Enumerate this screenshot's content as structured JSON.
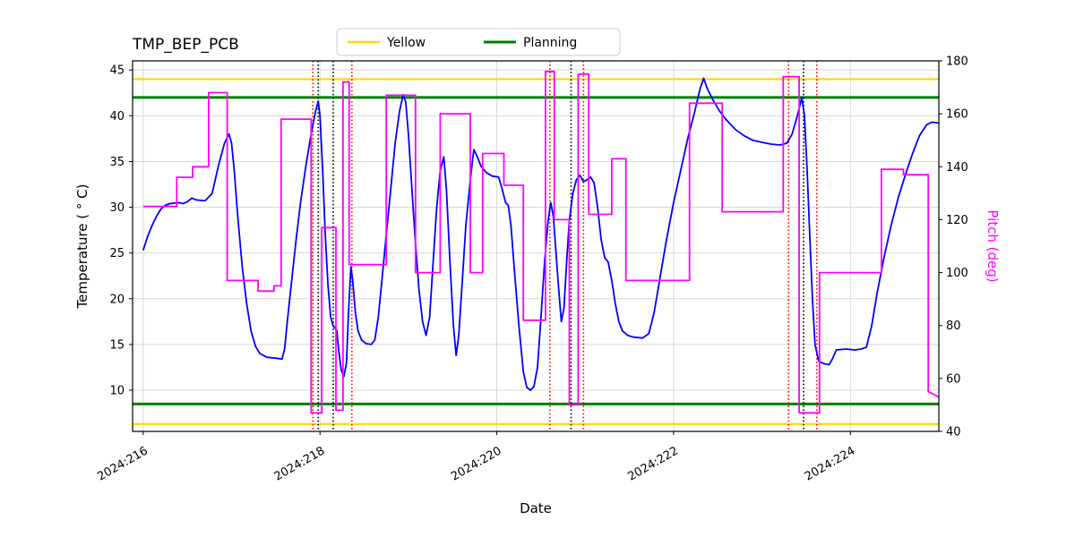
{
  "chart_data": {
    "type": "line",
    "title": "TMP_BEP_PCB",
    "xlabel": "Date",
    "ylabel_left": "Temperature ( ° C)",
    "ylabel_right": "Pitch (deg)",
    "grid": true,
    "legend_position": "top-center",
    "xlim": [
      215.88,
      225.0
    ],
    "ylim_left": [
      5.5,
      46
    ],
    "ylim_right": [
      40,
      180
    ],
    "xticks": [
      {
        "value": 216,
        "label": "2024:216"
      },
      {
        "value": 218,
        "label": "2024:218"
      },
      {
        "value": 220,
        "label": "2024:220"
      },
      {
        "value": 222,
        "label": "2024:222"
      },
      {
        "value": 224,
        "label": "2024:224"
      }
    ],
    "yticks_left": [
      10,
      15,
      20,
      25,
      30,
      35,
      40,
      45
    ],
    "yticks_right": [
      40,
      60,
      80,
      100,
      120,
      140,
      160,
      180
    ],
    "hlines": [
      {
        "name": "yellow-upper-limit",
        "y": 44,
        "color": "#ffd700",
        "width": 2.2
      },
      {
        "name": "yellow-lower-limit",
        "y": 6.3,
        "color": "#ffd700",
        "width": 2.2
      },
      {
        "name": "planning-upper-limit",
        "y": 42,
        "color": "#008000",
        "width": 3
      },
      {
        "name": "planning-lower-limit",
        "y": 8.5,
        "color": "#008000",
        "width": 3
      }
    ],
    "vlines": [
      {
        "name": "event-red-1",
        "x": 217.92,
        "color": "#ff0000"
      },
      {
        "name": "event-black-1",
        "x": 217.98,
        "color": "#000000"
      },
      {
        "name": "event-black-2",
        "x": 218.15,
        "color": "#000000"
      },
      {
        "name": "event-red-2",
        "x": 218.36,
        "color": "#ff0000"
      },
      {
        "name": "event-red-3",
        "x": 220.6,
        "color": "#ff0000"
      },
      {
        "name": "event-black-3",
        "x": 220.84,
        "color": "#000000"
      },
      {
        "name": "event-red-4",
        "x": 220.98,
        "color": "#ff0000"
      },
      {
        "name": "event-red-5",
        "x": 223.3,
        "color": "#ff0000"
      },
      {
        "name": "event-black-4",
        "x": 223.47,
        "color": "#000000"
      },
      {
        "name": "event-red-6",
        "x": 223.62,
        "color": "#ff0000"
      }
    ],
    "legend": [
      {
        "label": "Yellow",
        "color": "#ffd700"
      },
      {
        "label": "Planning",
        "color": "#008000"
      }
    ],
    "series": [
      {
        "name": "temperature",
        "color": "#0000ff",
        "axis": "left",
        "points": [
          [
            216.0,
            25.3
          ],
          [
            216.05,
            26.8
          ],
          [
            216.1,
            28.0
          ],
          [
            216.15,
            29.0
          ],
          [
            216.2,
            29.8
          ],
          [
            216.25,
            30.2
          ],
          [
            216.3,
            30.4
          ],
          [
            216.4,
            30.5
          ],
          [
            216.45,
            30.4
          ],
          [
            216.5,
            30.6
          ],
          [
            216.55,
            31.0
          ],
          [
            216.6,
            30.8
          ],
          [
            216.7,
            30.7
          ],
          [
            216.78,
            31.5
          ],
          [
            216.85,
            34.5
          ],
          [
            216.92,
            37.0
          ],
          [
            216.97,
            38.0
          ],
          [
            217.0,
            37.0
          ],
          [
            217.03,
            34.0
          ],
          [
            217.07,
            29.0
          ],
          [
            217.12,
            23.5
          ],
          [
            217.17,
            19.5
          ],
          [
            217.22,
            16.5
          ],
          [
            217.27,
            14.8
          ],
          [
            217.32,
            14.0
          ],
          [
            217.4,
            13.6
          ],
          [
            217.5,
            13.5
          ],
          [
            217.57,
            13.4
          ],
          [
            217.6,
            14.5
          ],
          [
            217.63,
            17.5
          ],
          [
            217.68,
            22.0
          ],
          [
            217.73,
            26.5
          ],
          [
            217.78,
            30.5
          ],
          [
            217.84,
            34.5
          ],
          [
            217.9,
            38.0
          ],
          [
            217.95,
            40.5
          ],
          [
            217.98,
            41.6
          ],
          [
            218.0,
            40.0
          ],
          [
            218.03,
            34.0
          ],
          [
            218.06,
            27.0
          ],
          [
            218.09,
            21.5
          ],
          [
            218.12,
            18.0
          ],
          [
            218.15,
            17.0
          ],
          [
            218.17,
            16.8
          ],
          [
            218.19,
            16.5
          ],
          [
            218.21,
            14.5
          ],
          [
            218.24,
            12.2
          ],
          [
            218.27,
            11.5
          ],
          [
            218.3,
            13.0
          ],
          [
            218.32,
            18.0
          ],
          [
            218.35,
            23.5
          ],
          [
            218.37,
            22.0
          ],
          [
            218.4,
            18.5
          ],
          [
            218.43,
            16.5
          ],
          [
            218.47,
            15.5
          ],
          [
            218.52,
            15.1
          ],
          [
            218.58,
            15.0
          ],
          [
            218.62,
            15.5
          ],
          [
            218.66,
            18.0
          ],
          [
            218.7,
            22.0
          ],
          [
            218.75,
            27.0
          ],
          [
            218.8,
            32.0
          ],
          [
            218.85,
            37.0
          ],
          [
            218.9,
            40.5
          ],
          [
            218.94,
            42.3
          ],
          [
            218.97,
            41.5
          ],
          [
            219.0,
            38.0
          ],
          [
            219.04,
            32.0
          ],
          [
            219.08,
            26.0
          ],
          [
            219.12,
            21.0
          ],
          [
            219.16,
            17.5
          ],
          [
            219.2,
            16.0
          ],
          [
            219.24,
            18.0
          ],
          [
            219.28,
            24.0
          ],
          [
            219.32,
            30.0
          ],
          [
            219.36,
            34.0
          ],
          [
            219.4,
            35.5
          ],
          [
            219.43,
            32.0
          ],
          [
            219.47,
            24.0
          ],
          [
            219.51,
            17.0
          ],
          [
            219.54,
            13.8
          ],
          [
            219.57,
            16.0
          ],
          [
            219.61,
            22.0
          ],
          [
            219.65,
            28.0
          ],
          [
            219.7,
            33.0
          ],
          [
            219.74,
            36.3
          ],
          [
            219.78,
            35.5
          ],
          [
            219.82,
            34.5
          ],
          [
            219.88,
            33.8
          ],
          [
            219.95,
            33.4
          ],
          [
            220.02,
            33.3
          ],
          [
            220.06,
            32.0
          ],
          [
            220.1,
            30.5
          ],
          [
            220.13,
            30.2
          ],
          [
            220.16,
            28.0
          ],
          [
            220.2,
            23.0
          ],
          [
            220.25,
            17.0
          ],
          [
            220.3,
            12.0
          ],
          [
            220.34,
            10.3
          ],
          [
            220.38,
            10.0
          ],
          [
            220.42,
            10.4
          ],
          [
            220.46,
            12.5
          ],
          [
            220.5,
            18.0
          ],
          [
            220.54,
            24.0
          ],
          [
            220.58,
            28.5
          ],
          [
            220.61,
            30.5
          ],
          [
            220.64,
            29.0
          ],
          [
            220.67,
            25.0
          ],
          [
            220.7,
            21.0
          ],
          [
            220.73,
            17.5
          ],
          [
            220.76,
            19.0
          ],
          [
            220.79,
            24.0
          ],
          [
            220.82,
            28.5
          ],
          [
            220.86,
            31.5
          ],
          [
            220.9,
            33.0
          ],
          [
            220.94,
            33.5
          ],
          [
            220.98,
            32.8
          ],
          [
            221.02,
            33.0
          ],
          [
            221.06,
            33.3
          ],
          [
            221.1,
            32.7
          ],
          [
            221.14,
            30.0
          ],
          [
            221.18,
            26.5
          ],
          [
            221.22,
            24.5
          ],
          [
            221.26,
            24.0
          ],
          [
            221.3,
            22.0
          ],
          [
            221.34,
            19.5
          ],
          [
            221.38,
            17.5
          ],
          [
            221.42,
            16.5
          ],
          [
            221.48,
            16.0
          ],
          [
            221.55,
            15.8
          ],
          [
            221.65,
            15.7
          ],
          [
            221.72,
            16.2
          ],
          [
            221.78,
            18.5
          ],
          [
            221.85,
            22.5
          ],
          [
            221.92,
            26.5
          ],
          [
            222.0,
            30.5
          ],
          [
            222.08,
            34.0
          ],
          [
            222.16,
            37.5
          ],
          [
            222.24,
            40.5
          ],
          [
            222.3,
            43.0
          ],
          [
            222.34,
            44.1
          ],
          [
            222.38,
            43.0
          ],
          [
            222.44,
            41.8
          ],
          [
            222.52,
            40.5
          ],
          [
            222.6,
            39.5
          ],
          [
            222.7,
            38.5
          ],
          [
            222.8,
            37.8
          ],
          [
            222.9,
            37.3
          ],
          [
            223.0,
            37.1
          ],
          [
            223.1,
            36.9
          ],
          [
            223.2,
            36.8
          ],
          [
            223.28,
            37.0
          ],
          [
            223.34,
            38.0
          ],
          [
            223.4,
            40.0
          ],
          [
            223.45,
            42.0
          ],
          [
            223.48,
            40.0
          ],
          [
            223.51,
            34.0
          ],
          [
            223.54,
            27.0
          ],
          [
            223.57,
            20.0
          ],
          [
            223.6,
            15.0
          ],
          [
            223.64,
            13.2
          ],
          [
            223.7,
            12.9
          ],
          [
            223.76,
            12.8
          ],
          [
            223.8,
            13.5
          ],
          [
            223.84,
            14.4
          ],
          [
            223.95,
            14.5
          ],
          [
            224.05,
            14.4
          ],
          [
            224.12,
            14.5
          ],
          [
            224.18,
            14.7
          ],
          [
            224.24,
            17.0
          ],
          [
            224.3,
            20.5
          ],
          [
            224.38,
            24.5
          ],
          [
            224.46,
            28.0
          ],
          [
            224.54,
            31.0
          ],
          [
            224.62,
            33.5
          ],
          [
            224.7,
            35.8
          ],
          [
            224.78,
            37.8
          ],
          [
            224.86,
            39.0
          ],
          [
            224.92,
            39.3
          ],
          [
            225.0,
            39.2
          ]
        ]
      },
      {
        "name": "pitch",
        "color": "#ff00ff",
        "axis": "right",
        "points": [
          [
            216.0,
            125
          ],
          [
            216.38,
            125
          ],
          [
            216.38,
            136
          ],
          [
            216.56,
            136
          ],
          [
            216.56,
            140
          ],
          [
            216.74,
            140
          ],
          [
            216.74,
            168
          ],
          [
            216.95,
            168
          ],
          [
            216.95,
            97
          ],
          [
            217.3,
            97
          ],
          [
            217.3,
            93
          ],
          [
            217.48,
            93
          ],
          [
            217.48,
            95
          ],
          [
            217.56,
            95
          ],
          [
            217.56,
            158
          ],
          [
            217.9,
            158
          ],
          [
            217.9,
            47
          ],
          [
            218.02,
            47
          ],
          [
            218.02,
            117
          ],
          [
            218.18,
            117
          ],
          [
            218.18,
            48
          ],
          [
            218.26,
            48
          ],
          [
            218.26,
            172
          ],
          [
            218.33,
            172
          ],
          [
            218.33,
            103
          ],
          [
            218.75,
            103
          ],
          [
            218.75,
            167
          ],
          [
            219.08,
            167
          ],
          [
            219.08,
            100
          ],
          [
            219.36,
            100
          ],
          [
            219.36,
            160
          ],
          [
            219.7,
            160
          ],
          [
            219.7,
            100
          ],
          [
            219.84,
            100
          ],
          [
            219.84,
            145
          ],
          [
            220.08,
            145
          ],
          [
            220.08,
            133
          ],
          [
            220.3,
            133
          ],
          [
            220.3,
            82
          ],
          [
            220.55,
            82
          ],
          [
            220.55,
            176
          ],
          [
            220.65,
            176
          ],
          [
            220.65,
            120
          ],
          [
            220.82,
            120
          ],
          [
            220.82,
            50
          ],
          [
            220.92,
            50
          ],
          [
            220.92,
            175
          ],
          [
            221.04,
            175
          ],
          [
            221.04,
            122
          ],
          [
            221.3,
            122
          ],
          [
            221.3,
            143
          ],
          [
            221.46,
            143
          ],
          [
            221.46,
            97
          ],
          [
            222.18,
            97
          ],
          [
            222.18,
            164
          ],
          [
            222.55,
            164
          ],
          [
            222.55,
            123
          ],
          [
            223.24,
            123
          ],
          [
            223.24,
            174
          ],
          [
            223.42,
            174
          ],
          [
            223.42,
            47
          ],
          [
            223.65,
            47
          ],
          [
            223.65,
            100
          ],
          [
            224.35,
            100
          ],
          [
            224.35,
            139
          ],
          [
            224.6,
            139
          ],
          [
            224.6,
            137
          ],
          [
            224.88,
            137
          ],
          [
            224.88,
            55
          ],
          [
            225.0,
            53
          ]
        ]
      }
    ]
  }
}
